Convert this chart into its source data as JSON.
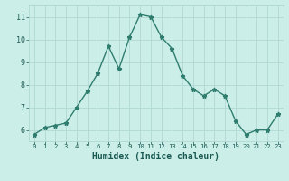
{
  "x": [
    0,
    1,
    2,
    3,
    4,
    5,
    6,
    7,
    8,
    9,
    10,
    11,
    12,
    13,
    14,
    15,
    16,
    17,
    18,
    19,
    20,
    21,
    22,
    23
  ],
  "y": [
    5.8,
    6.1,
    6.2,
    6.3,
    7.0,
    7.7,
    8.5,
    9.7,
    8.7,
    10.1,
    11.1,
    11.0,
    10.1,
    9.6,
    8.4,
    7.8,
    7.5,
    7.8,
    7.5,
    6.4,
    5.8,
    6.0,
    6.0,
    6.7
  ],
  "xlabel": "Humidex (Indice chaleur)",
  "line_color": "#2e7d6e",
  "bg_color": "#cceee8",
  "grid_color": "#b0d8d2",
  "text_color": "#1a5a52",
  "ylim": [
    5.5,
    11.5
  ],
  "yticks": [
    6,
    7,
    8,
    9,
    10,
    11
  ],
  "xtick_labels": [
    "0",
    "1",
    "2",
    "3",
    "4",
    "5",
    "6",
    "7",
    "8",
    "9",
    "10",
    "11",
    "12",
    "13",
    "14",
    "15",
    "16",
    "17",
    "18",
    "19",
    "20",
    "21",
    "22",
    "23"
  ]
}
